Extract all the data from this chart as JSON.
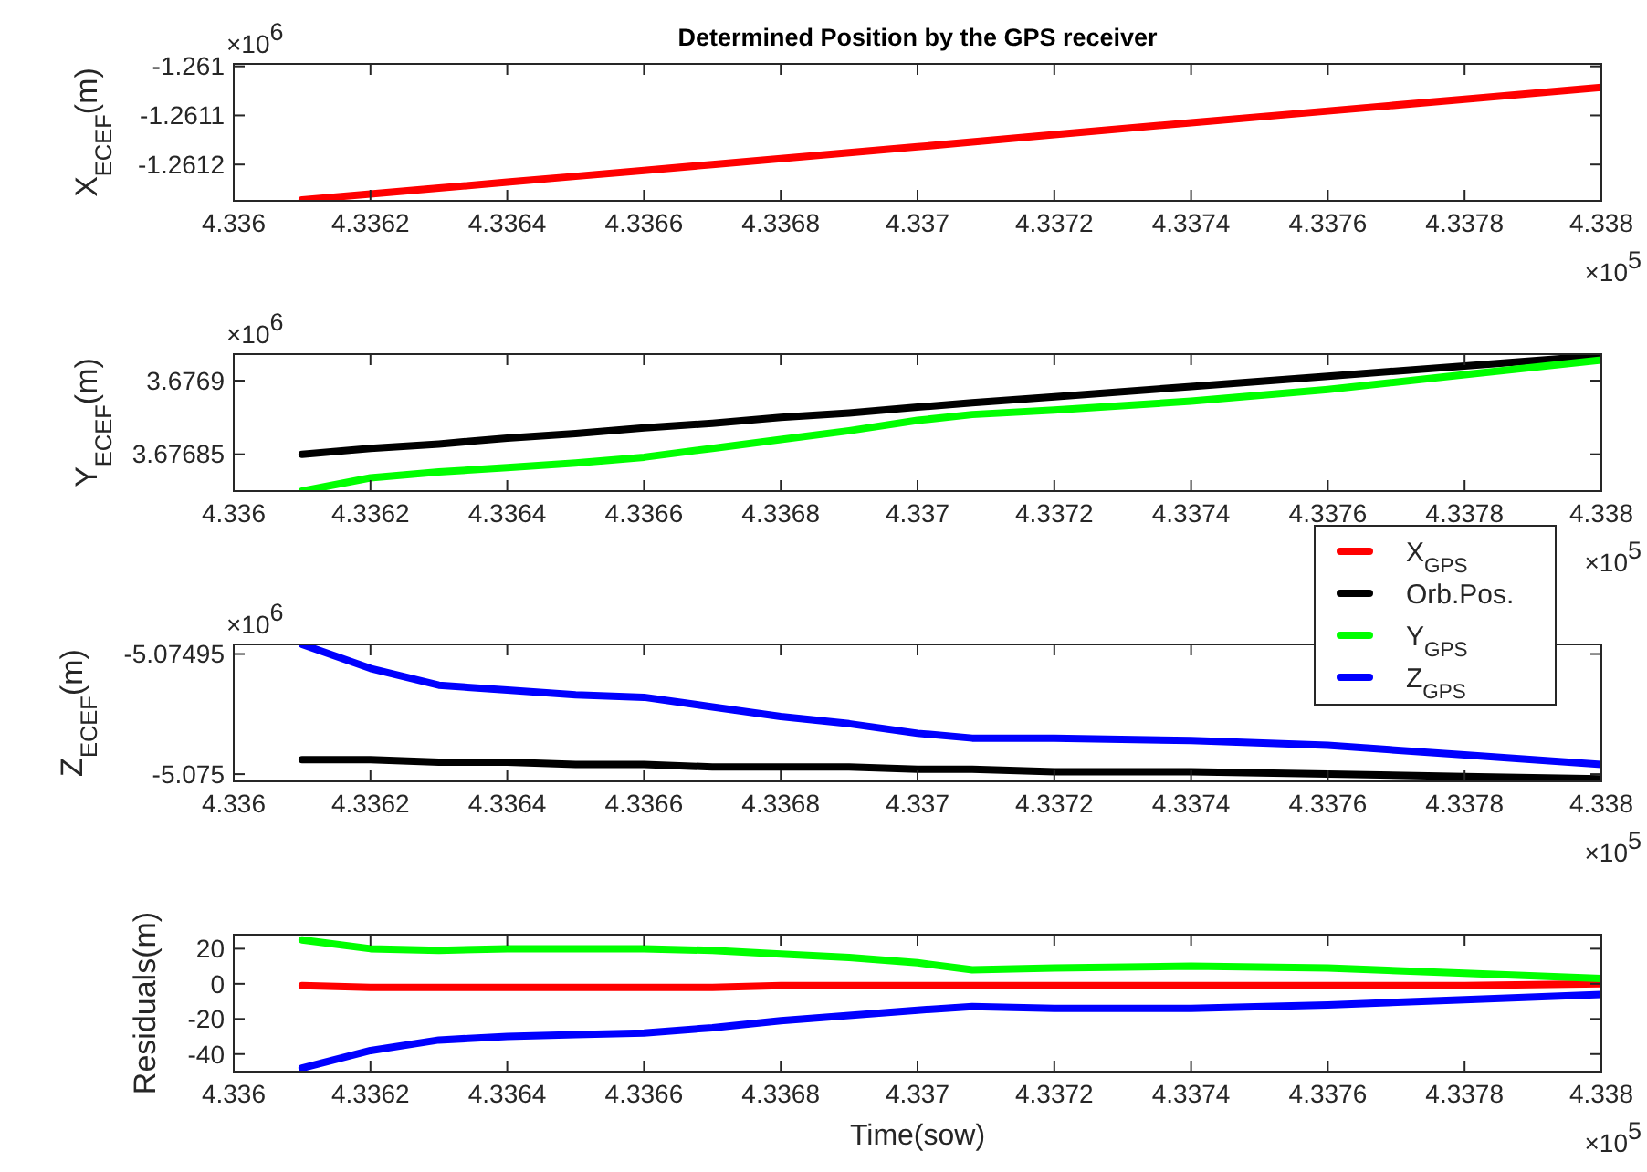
{
  "chart_data": [
    {
      "type": "line",
      "title": "Determined Position by the GPS receiver",
      "ylabel": "X$_{ECEF}$(m)",
      "annotations": [
        "×10$^{6}$",
        "×10$^{5}$"
      ],
      "x": [
        4.3361,
        4.3362,
        4.3363,
        4.3364,
        4.3365,
        4.3366,
        4.3367,
        4.3368,
        4.3369,
        4.337,
        4.33708,
        4.3372,
        4.3374,
        4.3376,
        4.3378,
        4.338
      ],
      "series": [
        {
          "name": "X$_{GPS}$",
          "color": "#ff0000",
          "values": [
            -1.261272,
            -1.26126,
            -1.261248,
            -1.261236,
            -1.261224,
            -1.261212,
            -1.2612,
            -1.261188,
            -1.261176,
            -1.261164,
            -1.261154,
            -1.261139,
            -1.261115,
            -1.261091,
            -1.261067,
            -1.261043
          ]
        }
      ],
      "xlim": [
        4.336,
        4.338
      ],
      "xticks": [
        4.336,
        4.3362,
        4.3364,
        4.3366,
        4.3368,
        4.337,
        4.3372,
        4.3374,
        4.3376,
        4.3378,
        4.338
      ],
      "ylim": [
        -1.261274,
        -1.260995
      ],
      "yticks": [
        -1.2612,
        -1.2611,
        -1.261
      ]
    },
    {
      "type": "line",
      "ylabel": "Y$_{ECEF}$(m)",
      "annotations": [
        "×10$^{6}$",
        "×10$^{5}$"
      ],
      "legend": "bottom right",
      "x": [
        4.3361,
        4.3362,
        4.3363,
        4.3364,
        4.3365,
        4.3366,
        4.3367,
        4.3368,
        4.3369,
        4.337,
        4.33708,
        4.3372,
        4.3374,
        4.3376,
        4.3378,
        4.338
      ],
      "series": [
        {
          "name": "Orb.Pos.",
          "color": "#000000",
          "values": [
            3.67685,
            3.676854,
            3.676857,
            3.676861,
            3.676864,
            3.676868,
            3.676871,
            3.676875,
            3.676878,
            3.676882,
            3.676885,
            3.676889,
            3.676896,
            3.676903,
            3.67691,
            3.676917
          ]
        },
        {
          "name": "Y$_{GPS}$",
          "color": "#00ff00",
          "values": [
            3.676825,
            3.676834,
            3.676838,
            3.676841,
            3.676844,
            3.676848,
            3.676854,
            3.67686,
            3.676866,
            3.676873,
            3.676877,
            3.67688,
            3.676886,
            3.676894,
            3.676904,
            3.676914
          ]
        }
      ],
      "xlim": [
        4.336,
        4.338
      ],
      "xticks": [
        4.336,
        4.3362,
        4.3364,
        4.3366,
        4.3368,
        4.337,
        4.3372,
        4.3374,
        4.3376,
        4.3378,
        4.338
      ],
      "ylim": [
        3.676825,
        3.676918
      ],
      "yticks": [
        3.67685,
        3.6769
      ]
    },
    {
      "type": "line",
      "ylabel": "Z$_{ECEF}$(m)",
      "annotations": [
        "×10$^{6}$",
        "×10$^{5}$"
      ],
      "x": [
        4.3361,
        4.3362,
        4.3363,
        4.3364,
        4.3365,
        4.3366,
        4.3367,
        4.3368,
        4.3369,
        4.337,
        4.33708,
        4.3372,
        4.3374,
        4.3376,
        4.3378,
        4.338
      ],
      "series": [
        {
          "color": "#000000",
          "values": [
            -5.074994,
            -5.074994,
            -5.074995,
            -5.074995,
            -5.074996,
            -5.074996,
            -5.074997,
            -5.074997,
            -5.074997,
            -5.074998,
            -5.074998,
            -5.074999,
            -5.074999,
            -5.075,
            -5.075001,
            -5.075002
          ]
        },
        {
          "name": "Z$_{GPS}$",
          "color": "#0000ff",
          "values": [
            -5.074946,
            -5.074956,
            -5.074963,
            -5.074965,
            -5.074967,
            -5.074968,
            -5.074972,
            -5.074976,
            -5.074979,
            -5.074983,
            -5.074985,
            -5.074985,
            -5.074986,
            -5.074988,
            -5.074992,
            -5.074996
          ]
        }
      ],
      "xlim": [
        4.336,
        4.338
      ],
      "xticks": [
        4.336,
        4.3362,
        4.3364,
        4.3366,
        4.3368,
        4.337,
        4.3372,
        4.3374,
        4.3376,
        4.3378,
        4.338
      ],
      "ylim": [
        -5.075003,
        -5.074946
      ],
      "yticks": [
        -5.075,
        -5.07495
      ]
    },
    {
      "type": "line",
      "ylabel": "Residuals(m)",
      "xlabel": "Time(sow)",
      "annotations": [
        "×10$^{5}$"
      ],
      "x": [
        4.3361,
        4.3362,
        4.3363,
        4.3364,
        4.3365,
        4.3366,
        4.3367,
        4.3368,
        4.3369,
        4.337,
        4.33708,
        4.3372,
        4.3374,
        4.3376,
        4.3378,
        4.338
      ],
      "series": [
        {
          "color": "#ff0000",
          "values": [
            -1,
            -2,
            -2,
            -2,
            -2,
            -2,
            -2,
            -1,
            -1,
            -1,
            -1,
            -1,
            -1,
            -1,
            -1,
            0
          ]
        },
        {
          "color": "#00ff00",
          "values": [
            25,
            20,
            19,
            20,
            20,
            20,
            19,
            17,
            15,
            12,
            8,
            9,
            10,
            9,
            6,
            3
          ]
        },
        {
          "color": "#0000ff",
          "values": [
            -48,
            -38,
            -32,
            -30,
            -29,
            -28,
            -25,
            -21,
            -18,
            -15,
            -13,
            -14,
            -14,
            -12,
            -9,
            -6
          ]
        }
      ],
      "xlim": [
        4.336,
        4.338
      ],
      "xticks": [
        4.336,
        4.3362,
        4.3364,
        4.3366,
        4.3368,
        4.337,
        4.3372,
        4.3374,
        4.3376,
        4.3378,
        4.338
      ],
      "ylim": [
        -50,
        28
      ],
      "yticks": [
        -40,
        -20,
        0,
        20
      ]
    }
  ]
}
